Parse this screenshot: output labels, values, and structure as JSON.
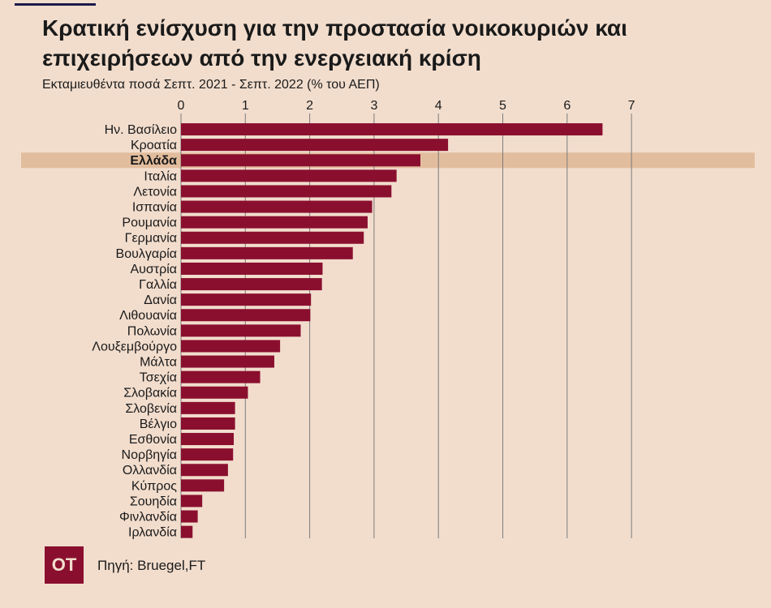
{
  "chart_data": {
    "type": "bar",
    "orientation": "horizontal",
    "title": "Κρατική ενίσχυση για την προστασία νοικοκυριών και επιχειρήσεων από την ενεργειακή κρίση",
    "subtitle": "Εκταμιευθέντα ποσά Σεπτ. 2021 - Σεπτ. 2022 (% του ΑΕΠ)",
    "categories": [
      "Ην. Βασίλειο",
      "Κροατία",
      "Ελλάδα",
      "Ιταλία",
      "Λετονία",
      "Ισπανία",
      "Ρουμανία",
      "Γερμανία",
      "Βουλγαρία",
      "Αυστρία",
      "Γαλλία",
      "Δανία",
      "Λιθουανία",
      "Πολωνία",
      "Λουξεμβούργο",
      "Μάλτα",
      "Τσεχία",
      "Σλοβακία",
      "Σλοβενία",
      "Βέλγιο",
      "Εσθονία",
      "Νορβηγία",
      "Ολλανδία",
      "Κύπρος",
      "Σουηδία",
      "Φινλανδία",
      "Ιρλανδία"
    ],
    "values": [
      6.55,
      4.15,
      3.72,
      3.35,
      3.27,
      2.97,
      2.9,
      2.84,
      2.67,
      2.2,
      2.19,
      2.02,
      2.01,
      1.86,
      1.54,
      1.45,
      1.23,
      1.04,
      0.84,
      0.84,
      0.82,
      0.81,
      0.73,
      0.67,
      0.33,
      0.26,
      0.18
    ],
    "highlight": "Ελλάδα",
    "xticks": [
      0,
      1,
      2,
      3,
      4,
      5,
      6,
      7
    ],
    "xlim": [
      0,
      8.7
    ],
    "xlabel": "",
    "ylabel": "",
    "grid": true,
    "axis_position": "top",
    "colors": {
      "bar": "#8a0f2f",
      "highlight_band": "#e2bd9d",
      "grid": "#7b7b7b",
      "background": "#f2ddcd"
    }
  },
  "logo": {
    "text": "OT"
  },
  "source": {
    "text": "Πηγή: Bruegel,FT"
  }
}
